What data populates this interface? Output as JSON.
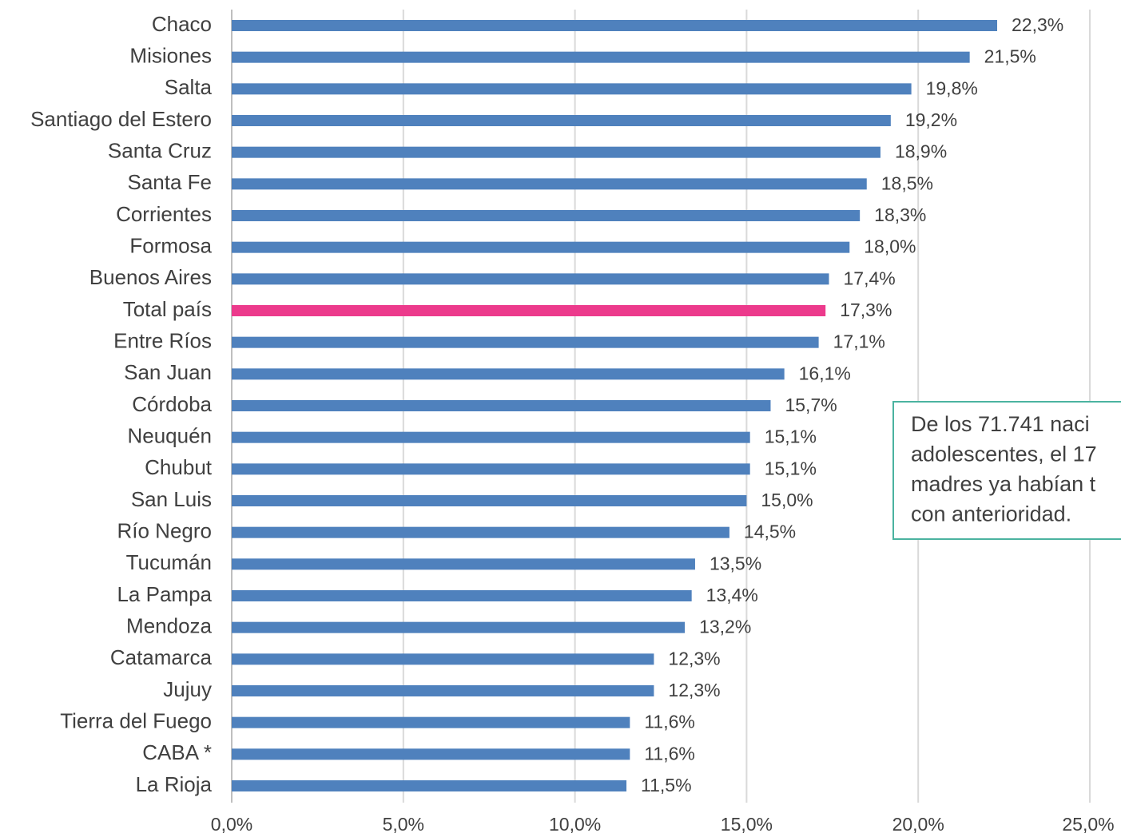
{
  "chart_data": {
    "type": "barh",
    "categories": [
      "Chaco",
      "Misiones",
      "Salta",
      "Santiago del Estero",
      "Santa Cruz",
      "Santa Fe",
      "Corrientes",
      "Formosa",
      "Buenos Aires",
      "Total país",
      "Entre Ríos",
      "San Juan",
      "Córdoba",
      "Neuquén",
      "Chubut",
      "San Luis",
      "Río Negro",
      "Tucumán",
      "La Pampa",
      "Mendoza",
      "Catamarca",
      "Jujuy",
      "Tierra del Fuego",
      "CABA *",
      "La Rioja"
    ],
    "values": [
      22.3,
      21.5,
      19.8,
      19.2,
      18.9,
      18.5,
      18.3,
      18.0,
      17.4,
      17.3,
      17.1,
      16.1,
      15.7,
      15.1,
      15.1,
      15.0,
      14.5,
      13.5,
      13.4,
      13.2,
      12.3,
      12.3,
      11.6,
      11.6,
      11.5
    ],
    "value_labels": [
      "22,3%",
      "21,5%",
      "19,8%",
      "19,2%",
      "18,9%",
      "18,5%",
      "18,3%",
      "18,0%",
      "17,4%",
      "17,3%",
      "17,1%",
      "16,1%",
      "15,7%",
      "15,1%",
      "15,1%",
      "15,0%",
      "14,5%",
      "13,5%",
      "13,4%",
      "13,2%",
      "12,3%",
      "12,3%",
      "11,6%",
      "11,6%",
      "11,5%"
    ],
    "colors": [
      "#4f81bd",
      "#4f81bd",
      "#4f81bd",
      "#4f81bd",
      "#4f81bd",
      "#4f81bd",
      "#4f81bd",
      "#4f81bd",
      "#4f81bd",
      "#ec3a8c",
      "#4f81bd",
      "#4f81bd",
      "#4f81bd",
      "#4f81bd",
      "#4f81bd",
      "#4f81bd",
      "#4f81bd",
      "#4f81bd",
      "#4f81bd",
      "#4f81bd",
      "#4f81bd",
      "#4f81bd",
      "#4f81bd",
      "#4f81bd",
      "#4f81bd"
    ],
    "xlim": [
      0,
      25
    ],
    "xticks": [
      {
        "value": 0,
        "label": "0,0%"
      },
      {
        "value": 5,
        "label": "5,0%"
      },
      {
        "value": 10,
        "label": "10,0%"
      },
      {
        "value": 15,
        "label": "15,0%"
      },
      {
        "value": 20,
        "label": "20,0%"
      },
      {
        "value": 25,
        "label": "25,0%"
      }
    ],
    "grid": true,
    "annotation": [
      "De los 71.741 naci",
      "adolescentes, el 17",
      "madres ya habían t",
      "con anterioridad."
    ]
  }
}
